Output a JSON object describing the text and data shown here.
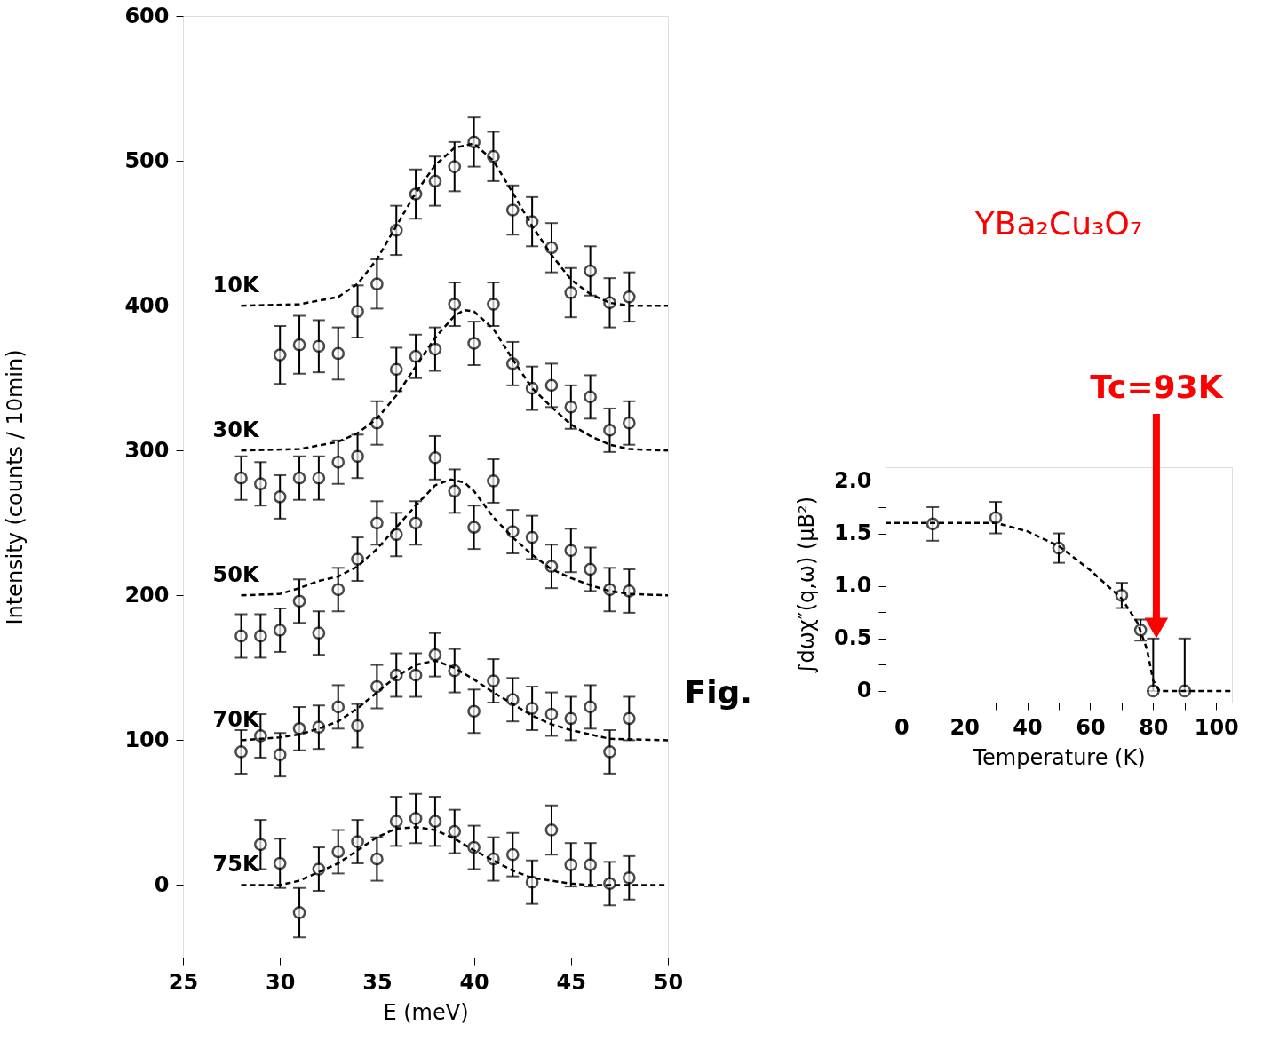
{
  "chart_data": [
    {
      "type": "scatter",
      "xlabel": "E (meV)",
      "ylabel": "Intensity (counts / 10min)",
      "xlim": [
        25,
        50
      ],
      "ylim": [
        -50,
        600
      ],
      "xticks": [
        25,
        30,
        35,
        40,
        45,
        50
      ],
      "yticks": [
        0,
        100,
        200,
        300,
        400,
        500,
        600
      ],
      "series": [
        {
          "name": "10K",
          "type": "scatter",
          "color": "#000000",
          "marker": "circle",
          "x": [
            30,
            31,
            32,
            33,
            34,
            35,
            36,
            37,
            38,
            39,
            40,
            41,
            42,
            43,
            44,
            45,
            46,
            47,
            48
          ],
          "values": [
            366,
            373,
            372,
            367,
            396,
            415,
            452,
            477,
            486,
            496,
            513,
            503,
            466,
            458,
            440,
            409,
            424,
            402,
            406
          ],
          "errors": [
            20,
            20,
            18,
            18,
            18,
            17,
            17,
            17,
            17,
            17,
            17,
            17,
            17,
            17,
            17,
            17,
            17,
            17,
            17
          ]
        },
        {
          "type": "line",
          "line_style": "dashed",
          "color": "#000000",
          "x": [
            28,
            31,
            33,
            34,
            35,
            36,
            37,
            38,
            39,
            40,
            41,
            42,
            43,
            44,
            45,
            46,
            47,
            48,
            50
          ],
          "values": [
            400,
            401,
            406,
            415,
            432,
            455,
            478,
            497,
            509,
            512,
            500,
            478,
            455,
            435,
            418,
            408,
            402,
            400,
            400
          ]
        },
        {
          "name": "30K",
          "type": "scatter",
          "color": "#000000",
          "marker": "circle",
          "x": [
            28,
            29,
            30,
            31,
            32,
            33,
            34,
            35,
            36,
            37,
            38,
            39,
            40,
            41,
            42,
            43,
            44,
            45,
            46,
            47,
            48
          ],
          "values": [
            281,
            277,
            268,
            281,
            281,
            292,
            296,
            319,
            356,
            365,
            370,
            401,
            374,
            401,
            360,
            343,
            345,
            330,
            337,
            314,
            319
          ],
          "errors": [
            15,
            15,
            15,
            15,
            15,
            15,
            15,
            15,
            15,
            15,
            15,
            15,
            15,
            15,
            15,
            15,
            15,
            15,
            15,
            15,
            15
          ]
        },
        {
          "type": "line",
          "line_style": "dashed",
          "color": "#000000",
          "x": [
            28,
            31,
            33,
            34,
            35,
            36,
            37,
            38,
            39,
            39.5,
            40,
            41,
            42,
            43,
            44,
            45,
            46,
            47,
            48,
            50
          ],
          "values": [
            300,
            301,
            306,
            312,
            322,
            338,
            358,
            378,
            393,
            397,
            396,
            384,
            363,
            343,
            330,
            318,
            310,
            304,
            301,
            300
          ]
        },
        {
          "name": "50K",
          "type": "scatter",
          "color": "#000000",
          "marker": "circle",
          "x": [
            28,
            29,
            30,
            31,
            32,
            33,
            34,
            35,
            36,
            37,
            38,
            39,
            40,
            41,
            42,
            43,
            44,
            45,
            46,
            47,
            48
          ],
          "values": [
            172,
            172,
            176,
            196,
            174,
            204,
            225,
            250,
            242,
            250,
            295,
            272,
            247,
            279,
            244,
            240,
            220,
            231,
            218,
            204,
            203
          ],
          "errors": [
            15,
            15,
            15,
            15,
            15,
            15,
            15,
            15,
            15,
            15,
            15,
            15,
            15,
            15,
            15,
            15,
            15,
            15,
            15,
            15,
            15
          ]
        },
        {
          "type": "line",
          "line_style": "dashed",
          "color": "#000000",
          "x": [
            28,
            30,
            31,
            32,
            33,
            34,
            35,
            36,
            37,
            38,
            38.8,
            39.5,
            40,
            41,
            42,
            43,
            44,
            45,
            46,
            47,
            48,
            50
          ],
          "values": [
            200,
            201,
            205,
            210,
            213,
            220,
            232,
            247,
            262,
            276,
            280,
            278,
            272,
            254,
            240,
            228,
            218,
            212,
            207,
            203,
            201,
            200
          ]
        },
        {
          "name": "70K",
          "type": "scatter",
          "color": "#000000",
          "marker": "circle",
          "x": [
            28,
            29,
            30,
            31,
            32,
            33,
            34,
            35,
            36,
            37,
            38,
            39,
            40,
            41,
            42,
            43,
            44,
            45,
            46,
            47,
            48
          ],
          "values": [
            92,
            103,
            90,
            108,
            109,
            123,
            110,
            137,
            145,
            145,
            159,
            148,
            120,
            141,
            128,
            122,
            118,
            115,
            123,
            92,
            115
          ],
          "errors": [
            15,
            15,
            15,
            15,
            15,
            15,
            15,
            15,
            15,
            15,
            15,
            15,
            15,
            15,
            15,
            15,
            15,
            15,
            15,
            15,
            15
          ]
        },
        {
          "type": "line",
          "line_style": "dashed",
          "color": "#000000",
          "x": [
            28,
            30,
            31,
            32,
            33,
            34,
            35,
            36,
            37,
            38,
            39,
            40,
            41,
            42,
            43,
            44,
            45,
            46,
            47,
            50
          ],
          "values": [
            100,
            102,
            104,
            108,
            113,
            122,
            133,
            144,
            152,
            155,
            150,
            142,
            133,
            125,
            117,
            111,
            107,
            104,
            101,
            100
          ]
        },
        {
          "name": "75K",
          "type": "scatter",
          "color": "#000000",
          "marker": "circle",
          "x": [
            29,
            30,
            31,
            32,
            33,
            34,
            35,
            36,
            37,
            38,
            39,
            40,
            41,
            42,
            43,
            44,
            45,
            46,
            47,
            48
          ],
          "values": [
            28,
            15,
            -19,
            11,
            23,
            30,
            18,
            44,
            46,
            44,
            37,
            26,
            18,
            21,
            2,
            38,
            14,
            14,
            1,
            5
          ],
          "errors": [
            17,
            17,
            17,
            15,
            15,
            15,
            15,
            17,
            17,
            17,
            15,
            15,
            15,
            15,
            15,
            17,
            15,
            15,
            15,
            15
          ]
        },
        {
          "type": "line",
          "line_style": "dashed",
          "color": "#000000",
          "x": [
            28,
            30,
            31,
            32,
            33,
            34,
            35,
            36,
            37,
            38,
            39,
            40,
            41,
            42,
            43,
            44,
            45,
            46,
            50
          ],
          "values": [
            0,
            0,
            3,
            9,
            15,
            24,
            33,
            39,
            40,
            38,
            32,
            24,
            17,
            10,
            5,
            3,
            1,
            0,
            0
          ]
        }
      ]
    },
    {
      "type": "scatter",
      "xlabel": "Temperature (K)",
      "ylabel": "∫dωχ″(q,ω) (μB²)",
      "xlim": [
        -5,
        105
      ],
      "ylim": [
        -0.11,
        2.13
      ],
      "xticks": [
        0,
        {
          "value": 10,
          "label": null
        },
        20,
        {
          "value": 30,
          "label": null
        },
        40,
        {
          "value": 50,
          "label": null
        },
        60,
        {
          "value": 70,
          "label": null
        },
        80,
        {
          "value": 90,
          "label": null
        },
        100
      ],
      "yticks": [
        {
          "value": 0,
          "label": "0"
        },
        {
          "value": 0.25,
          "label": null
        },
        0.5,
        {
          "value": 0.75,
          "label": null
        },
        {
          "value": 1,
          "label": "1.0"
        },
        {
          "value": 1.25,
          "label": null
        },
        1.5,
        {
          "value": 1.75,
          "label": null
        },
        {
          "value": 2,
          "label": "2.0"
        }
      ],
      "annotations": [
        "YBa₂Cu₃O₇",
        "Fig.",
        {
          "text": "Tc=93K",
          "x": 81,
          "y": 0.6
        }
      ],
      "series": [
        {
          "type": "scatter",
          "color": "#000000",
          "marker": "circle",
          "x": [
            10,
            30,
            50,
            70,
            76,
            80,
            90
          ],
          "values": [
            1.59,
            1.65,
            1.36,
            0.91,
            0.58,
            0,
            0
          ],
          "errors": [
            0.16,
            0.15,
            0.14,
            0.12,
            0.1,
            [
              0,
              0.5
            ],
            [
              0,
              0.5
            ]
          ]
        },
        {
          "type": "line",
          "line_style": "dashed",
          "color": "#000000",
          "x": [
            -5,
            10,
            30,
            40,
            50,
            60,
            70,
            75,
            78,
            80,
            82,
            105
          ],
          "values": [
            1.6,
            1.6,
            1.6,
            1.52,
            1.38,
            1.15,
            0.88,
            0.65,
            0.4,
            0.1,
            0,
            0
          ]
        }
      ]
    }
  ]
}
